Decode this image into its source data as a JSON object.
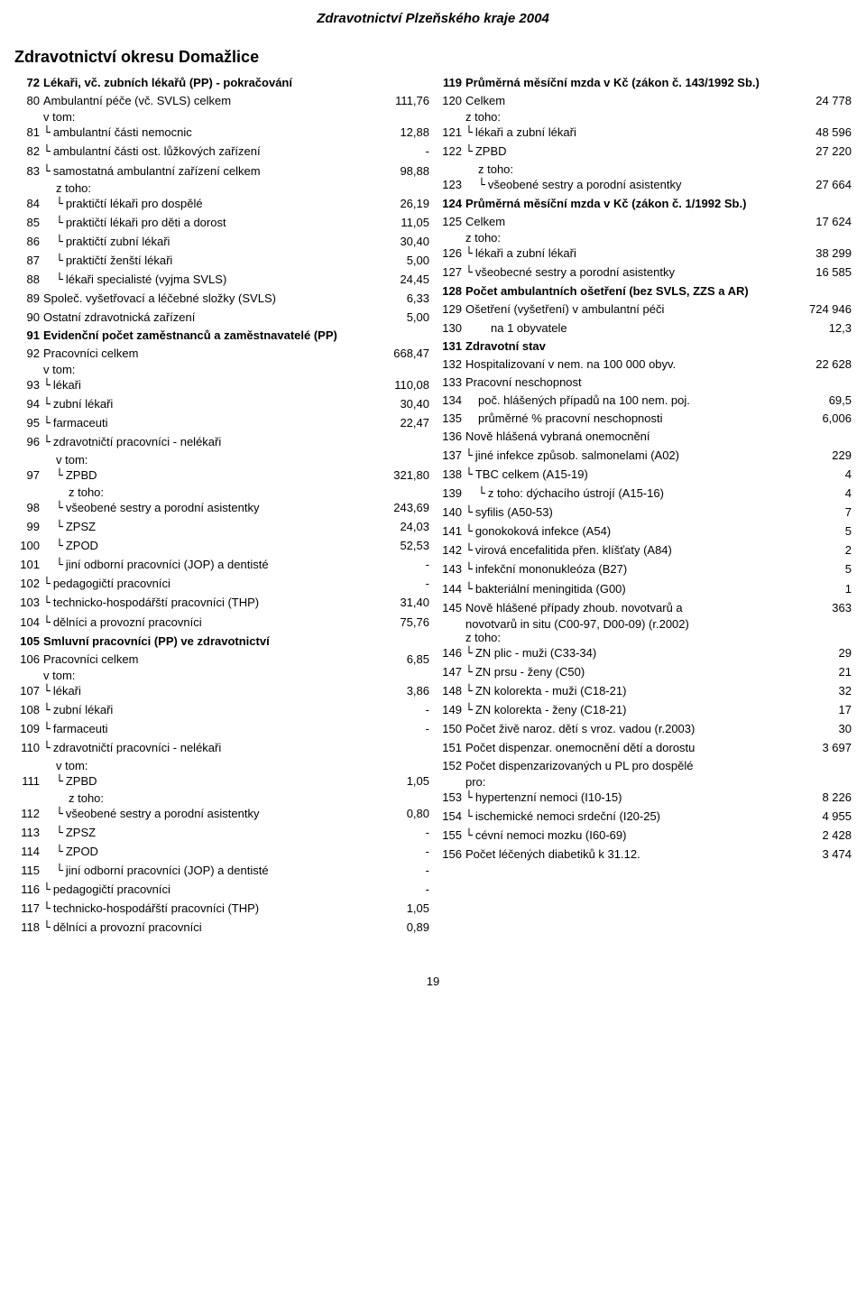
{
  "header": "Zdravotnictví Plzeňského kraje 2004",
  "title": "Zdravotnictví okresu Domažlice",
  "page_number": "19",
  "left": [
    {
      "n": "72",
      "label": "Lékaři, vč. zubních lékařů (PP) - pokračování",
      "val": "",
      "bold": true
    },
    {
      "n": "80",
      "label": "Ambulantní péče (vč. SVLS) celkem",
      "val": "111,76"
    },
    {
      "sub": "v tom:"
    },
    {
      "n": "81",
      "indent": 1,
      "label": "ambulantní části nemocnic",
      "val": "12,88"
    },
    {
      "n": "82",
      "indent": 1,
      "label": "ambulantní části ost. lůžkových zařízení",
      "val": "-"
    },
    {
      "n": "83",
      "indent": 1,
      "label": "samostatná ambulantní zařízení celkem",
      "val": "98,88"
    },
    {
      "sub": "z toho:",
      "pad": 46
    },
    {
      "n": "84",
      "indent": 2,
      "label": "praktičtí lékaři pro dospělé",
      "val": "26,19"
    },
    {
      "n": "85",
      "indent": 2,
      "label": "praktičtí lékaři pro děti a dorost",
      "val": "11,05"
    },
    {
      "n": "86",
      "indent": 2,
      "label": "praktičtí zubní lékaři",
      "val": "30,40"
    },
    {
      "n": "87",
      "indent": 2,
      "label": "praktičtí ženští lékaři",
      "val": "5,00"
    },
    {
      "n": "88",
      "indent": 2,
      "label": "lékaři specialisté (vyjma SVLS)",
      "val": "24,45"
    },
    {
      "n": "89",
      "label": "Společ. vyšetřovací a léčebné složky (SVLS)",
      "val": "6,33"
    },
    {
      "n": "90",
      "label": "Ostatní zdravotnická zařízení",
      "val": "5,00"
    },
    {
      "n": "91",
      "label": "Evidenční počet zaměstnanců a zaměstnavatelé (PP)",
      "val": "",
      "bold": true
    },
    {
      "n": "92",
      "label": "Pracovníci celkem",
      "val": "668,47"
    },
    {
      "sub": "v tom:"
    },
    {
      "n": "93",
      "indent": 1,
      "label": "lékaři",
      "val": "110,08"
    },
    {
      "n": "94",
      "indent": 1,
      "label": "zubní lékaři",
      "val": "30,40"
    },
    {
      "n": "95",
      "indent": 1,
      "label": "farmaceuti",
      "val": "22,47"
    },
    {
      "n": "96",
      "indent": 1,
      "label": "zdravotničtí pracovníci - nelékaři",
      "val": ""
    },
    {
      "sub": "v tom:",
      "pad": 46
    },
    {
      "n": "97",
      "indent": 2,
      "label": "ZPBD",
      "val": "321,80"
    },
    {
      "sub": "z toho:",
      "pad": 60
    },
    {
      "n": "98",
      "indent": 2,
      "label": "  všeobené sestry a porodní asistentky",
      "val": "243,69"
    },
    {
      "n": "99",
      "indent": 2,
      "label": "ZPSZ",
      "val": "24,03"
    },
    {
      "n": "100",
      "indent": 2,
      "label": "ZPOD",
      "val": "52,53"
    },
    {
      "n": "101",
      "indent": 2,
      "label": "jiní odborní pracovníci (JOP) a dentisté",
      "val": "-"
    },
    {
      "n": "102",
      "indent": 1,
      "label": "pedagogičtí pracovníci",
      "val": "-"
    },
    {
      "n": "103",
      "indent": 1,
      "label": "technicko-hospodářští pracovníci (THP)",
      "val": "31,40"
    },
    {
      "n": "104",
      "indent": 1,
      "label": "dělníci a provozní pracovníci",
      "val": "75,76"
    },
    {
      "n": "105",
      "label": "Smluvní pracovníci (PP) ve zdravotnictví",
      "val": "",
      "bold": true
    },
    {
      "n": "106",
      "label": "Pracovníci celkem",
      "val": "6,85"
    },
    {
      "sub": "v tom:"
    },
    {
      "n": "107",
      "indent": 1,
      "label": "lékaři",
      "val": "3,86"
    },
    {
      "n": "108",
      "indent": 1,
      "label": "zubní lékaři",
      "val": "-"
    },
    {
      "n": "109",
      "indent": 1,
      "label": "farmaceuti",
      "val": "-"
    },
    {
      "n": "110",
      "indent": 1,
      "label": "zdravotničtí pracovníci - nelékaři",
      "val": ""
    },
    {
      "sub": "v tom:",
      "pad": 46
    },
    {
      "n": "111",
      "indent": 2,
      "label": "ZPBD",
      "val": "1,05"
    },
    {
      "sub": "z toho:",
      "pad": 60
    },
    {
      "n": "112",
      "indent": 2,
      "label": "  všeobené sestry a porodní asistentky",
      "val": "0,80"
    },
    {
      "n": "113",
      "indent": 2,
      "label": "ZPSZ",
      "val": "-"
    },
    {
      "n": "114",
      "indent": 2,
      "label": "ZPOD",
      "val": "-"
    },
    {
      "n": "115",
      "indent": 2,
      "label": "jiní odborní pracovníci (JOP) a dentisté",
      "val": "-"
    },
    {
      "n": "116",
      "indent": 1,
      "label": "pedagogičtí pracovníci",
      "val": "-"
    },
    {
      "n": "117",
      "indent": 1,
      "label": "technicko-hospodářští pracovníci (THP)",
      "val": "1,05"
    },
    {
      "n": "118",
      "indent": 1,
      "label": "dělníci a provozní pracovníci",
      "val": "0,89"
    }
  ],
  "right": [
    {
      "n": "119",
      "label": "Průměrná měsíční mzda v Kč (zákon č. 143/1992 Sb.)",
      "val": "",
      "bold": true
    },
    {
      "n": "120",
      "label": "Celkem",
      "val": "24 778"
    },
    {
      "sub": "z toho:"
    },
    {
      "n": "121",
      "indent": 1,
      "label": "lékaři a zubní lékaři",
      "val": "48 596"
    },
    {
      "n": "122",
      "indent": 1,
      "label": "ZPBD",
      "val": "27 220"
    },
    {
      "sub": "z toho:",
      "pad": 46
    },
    {
      "n": "123",
      "indent": 2,
      "label": "všeobené sestry a porodní asistentky",
      "val": "27 664"
    },
    {
      "n": "124",
      "label": "Průměrná měsíční mzda v Kč (zákon č. 1/1992 Sb.)",
      "val": "",
      "bold": true
    },
    {
      "n": "125",
      "label": "Celkem",
      "val": "17 624"
    },
    {
      "sub": "z toho:"
    },
    {
      "n": "126",
      "indent": 1,
      "label": "lékaři a zubní lékaři",
      "val": "38 299"
    },
    {
      "n": "127",
      "indent": 1,
      "label": "všeobecné sestry a porodní asistentky",
      "val": "16 585"
    },
    {
      "n": "128",
      "label": "Počet ambulantních ošetření (bez SVLS, ZZS a AR)",
      "val": "",
      "bold": true
    },
    {
      "n": "129",
      "label": "Ošetření (vyšetření) v ambulantní péči",
      "val": "724 946"
    },
    {
      "n": "130",
      "indent": 2,
      "label": "na 1 obyvatele",
      "val": "12,3",
      "noconn": true
    },
    {
      "n": "131",
      "label": "Zdravotní stav",
      "val": "",
      "bold": true
    },
    {
      "n": "132",
      "label": "Hospitalizovaní v nem. na 100 000 obyv.",
      "val": "22 628"
    },
    {
      "n": "133",
      "label": "Pracovní neschopnost",
      "val": ""
    },
    {
      "n": "134",
      "indent": 1,
      "label": "poč. hlášených případů na 100 nem. poj.",
      "val": "69,5",
      "noconn": true
    },
    {
      "n": "135",
      "indent": 1,
      "label": "průměrné % pracovní neschopnosti",
      "val": "6,006",
      "noconn": true
    },
    {
      "n": "136",
      "label": "Nově hlášená vybraná onemocnění",
      "val": ""
    },
    {
      "n": "137",
      "indent": 1,
      "label": "jiné infekce způsob. salmonelami (A02)",
      "val": "229"
    },
    {
      "n": "138",
      "indent": 1,
      "label": "TBC celkem (A15-19)",
      "val": "4"
    },
    {
      "n": "139",
      "indent": 2,
      "label": "z toho: dýchacího ústrojí (A15-16)",
      "val": "4"
    },
    {
      "n": "140",
      "indent": 1,
      "label": "syfilis (A50-53)",
      "val": "7"
    },
    {
      "n": "141",
      "indent": 1,
      "label": "gonokoková infekce (A54)",
      "val": "5"
    },
    {
      "n": "142",
      "indent": 1,
      "label": "virová encefalitida přen. klíšťaty (A84)",
      "val": "2"
    },
    {
      "n": "143",
      "indent": 1,
      "label": "infekční mononukleóza (B27)",
      "val": "5"
    },
    {
      "n": "144",
      "indent": 1,
      "label": "bakteriální meningitida (G00)",
      "val": "1"
    },
    {
      "n": "145",
      "label": "Nově hlášené případy zhoub. novotvarů a",
      "val": "363"
    },
    {
      "wrap": "novotvarů in situ (C00-97, D00-09) (r.2002)"
    },
    {
      "sub": "z toho:"
    },
    {
      "n": "146",
      "indent": 1,
      "label": "ZN plic - muži (C33-34)",
      "val": "29"
    },
    {
      "n": "147",
      "indent": 1,
      "label": "ZN prsu - ženy (C50)",
      "val": "21"
    },
    {
      "n": "148",
      "indent": 1,
      "label": "ZN kolorekta - muži (C18-21)",
      "val": "32"
    },
    {
      "n": "149",
      "indent": 1,
      "label": "ZN kolorekta - ženy (C18-21)",
      "val": "17"
    },
    {
      "n": "150",
      "label": "Počet živě naroz. dětí s vroz. vadou (r.2003)",
      "val": "30"
    },
    {
      "n": "151",
      "label": "Počet dispenzar. onemocnění dětí a dorostu",
      "val": "3 697"
    },
    {
      "n": "152",
      "label": "Počet dispenzarizovaných u PL pro dospělé",
      "val": ""
    },
    {
      "sub": "pro:"
    },
    {
      "n": "153",
      "indent": 1,
      "label": "hypertenzní nemoci (I10-15)",
      "val": "8 226"
    },
    {
      "n": "154",
      "indent": 1,
      "label": "ischemické nemoci srdeční (I20-25)",
      "val": "4 955"
    },
    {
      "n": "155",
      "indent": 1,
      "label": "cévní nemoci mozku (I60-69)",
      "val": "2 428"
    },
    {
      "n": "156",
      "label": "Počet léčených diabetiků k 31.12.",
      "val": "3 474"
    }
  ]
}
